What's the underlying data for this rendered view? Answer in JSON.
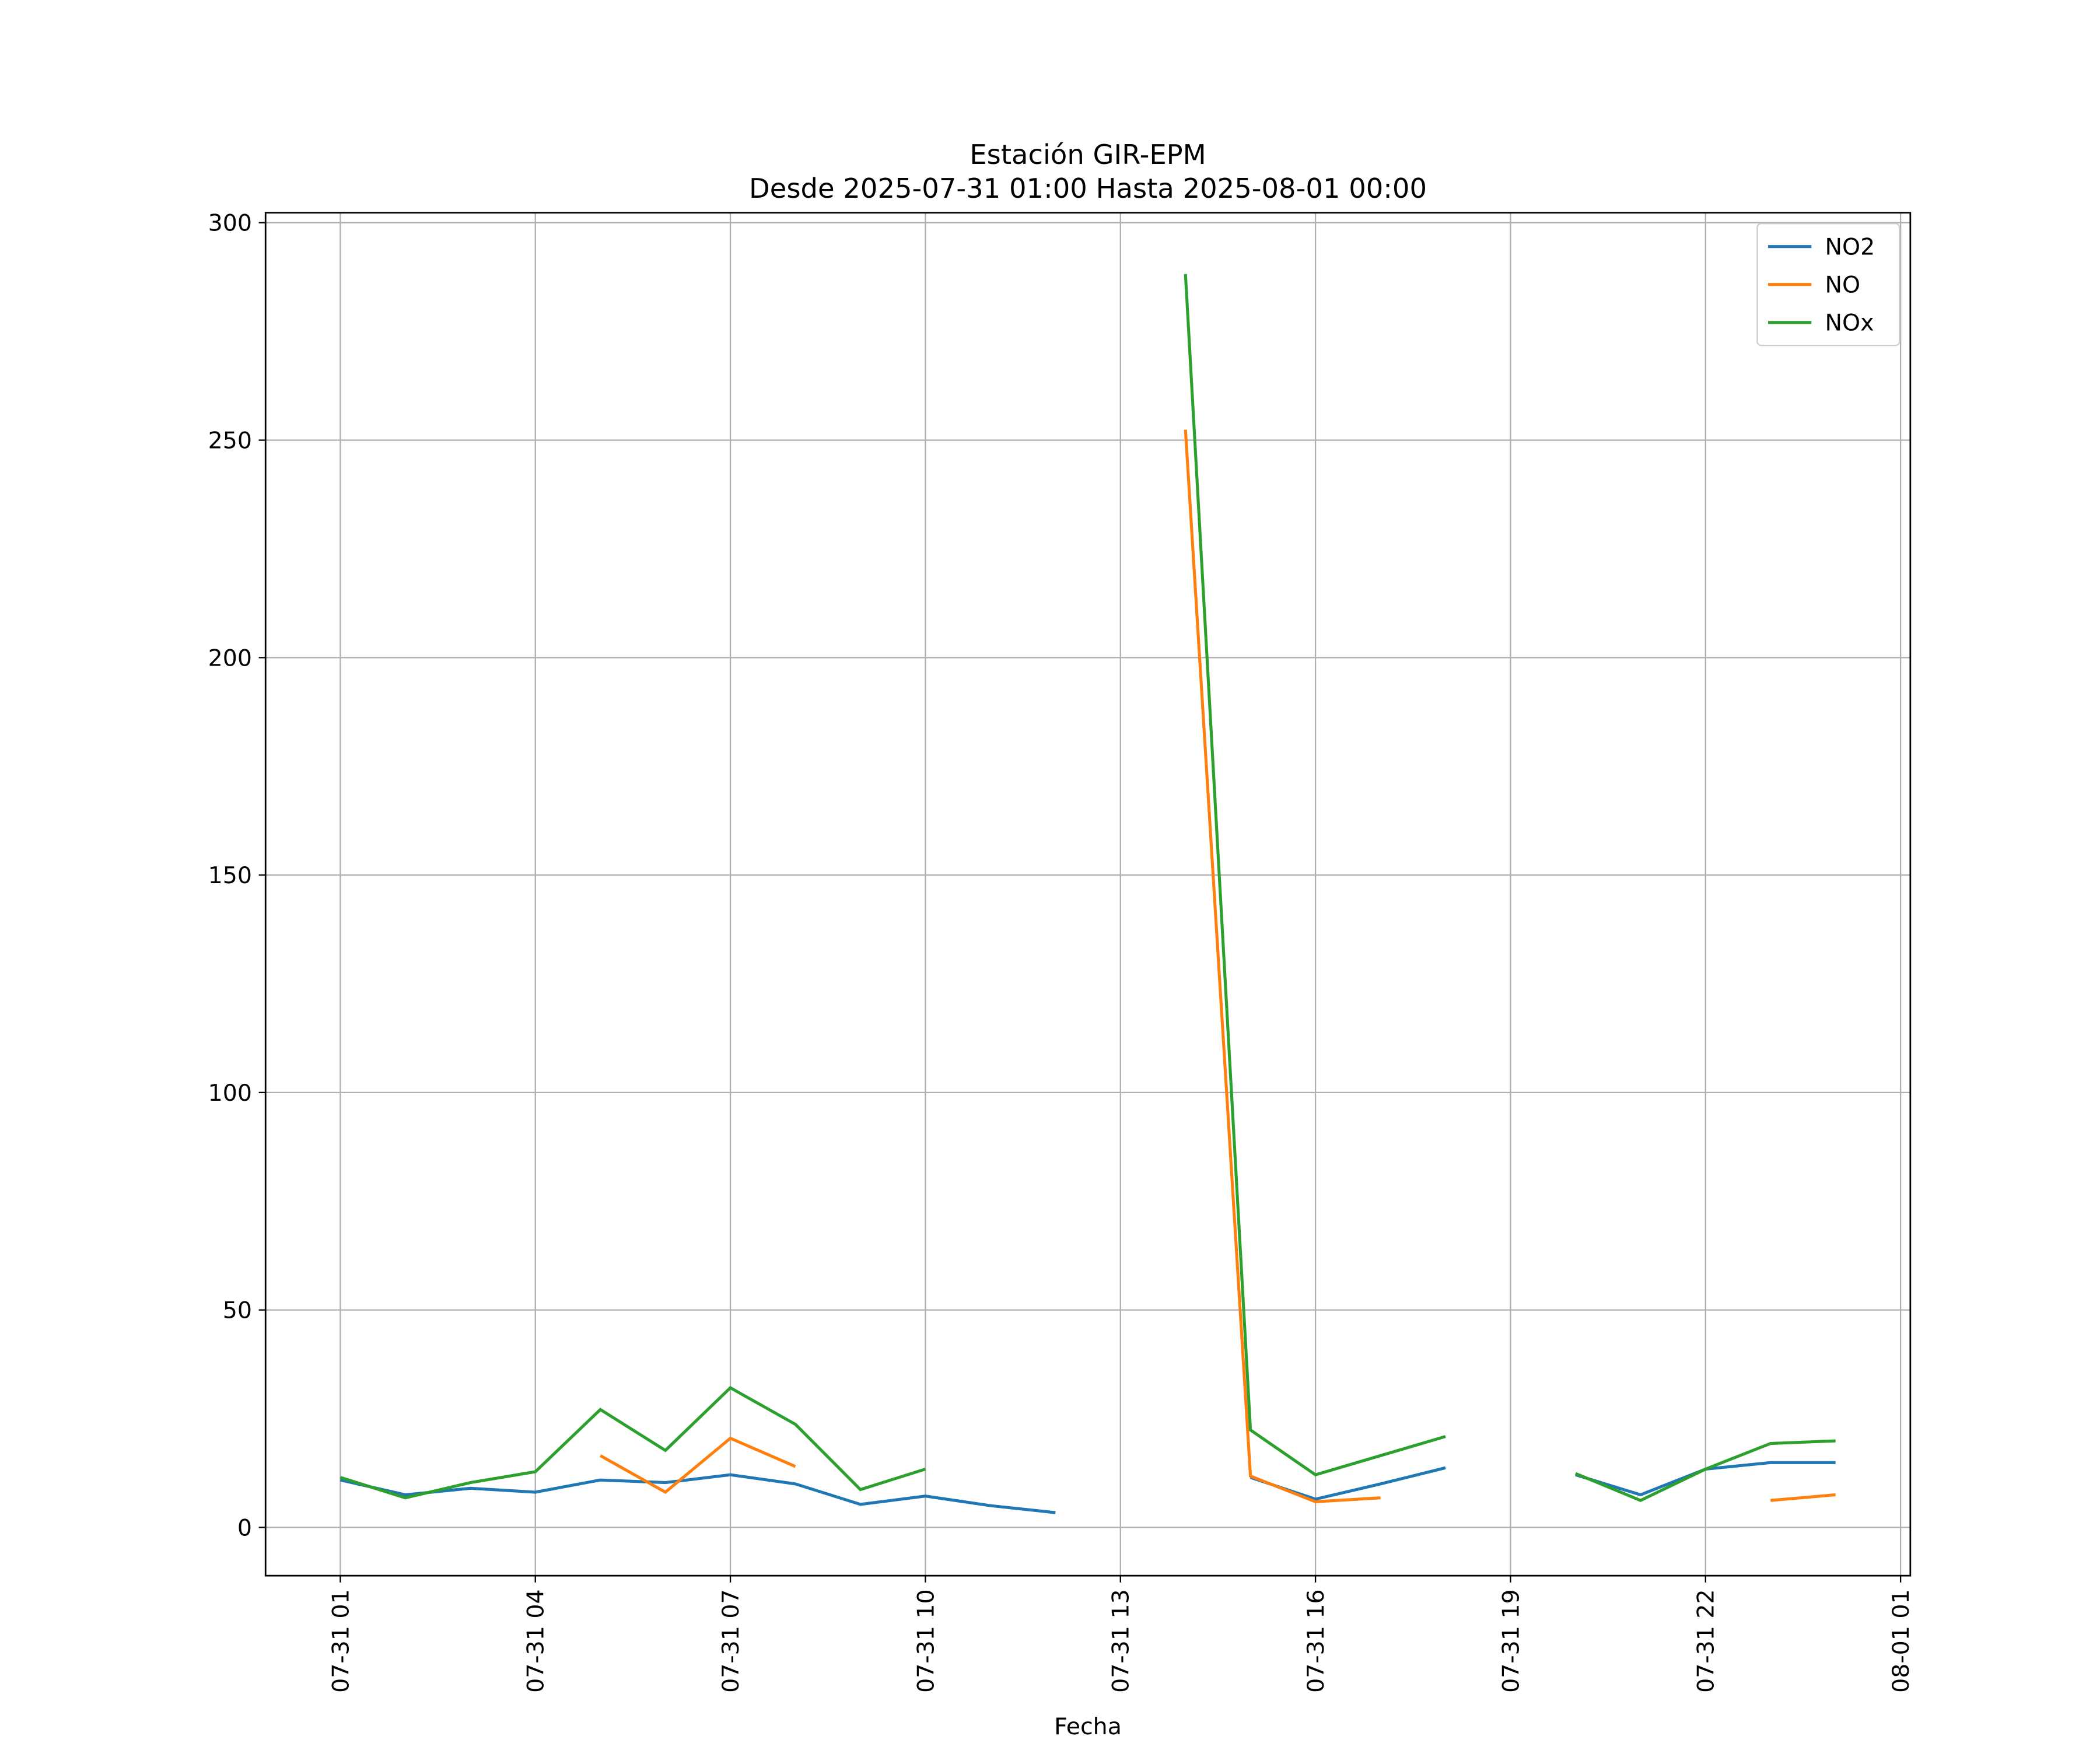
{
  "chart_data": {
    "type": "line",
    "title": "Estación GIR-EPM",
    "subtitle": "Desde 2025-07-31 01:00 Hasta 2025-08-01 00:00",
    "x_label": "Fecha",
    "x": [
      "07-31 01",
      "07-31 02",
      "07-31 03",
      "07-31 04",
      "07-31 05",
      "07-31 06",
      "07-31 07",
      "07-31 08",
      "07-31 09",
      "07-31 10",
      "07-31 11",
      "07-31 12",
      "07-31 13",
      "07-31 14",
      "07-31 15",
      "07-31 16",
      "07-31 17",
      "07-31 18",
      "07-31 19",
      "07-31 20",
      "07-31 21",
      "07-31 22",
      "07-31 23",
      "08-01 00"
    ],
    "series": [
      {
        "name": "NO2",
        "color": "#1f77b4",
        "values": [
          10.9,
          7.5,
          9.0,
          8.1,
          10.9,
          10.3,
          12.1,
          10.0,
          5.3,
          7.2,
          5.0,
          3.4,
          null,
          null,
          11.5,
          6.5,
          10.0,
          13.7,
          null,
          12.1,
          7.5,
          13.4,
          14.9,
          14.9
        ]
      },
      {
        "name": "NO",
        "color": "#ff7f0e",
        "values": [
          null,
          null,
          null,
          null,
          16.5,
          8.1,
          20.5,
          14.0,
          null,
          null,
          null,
          null,
          null,
          252.4,
          11.8,
          5.9,
          6.8,
          null,
          null,
          null,
          null,
          null,
          6.2,
          7.5
        ]
      },
      {
        "name": "NOx",
        "color": "#2ca02c",
        "values": [
          11.5,
          6.8,
          10.3,
          12.8,
          27.1,
          17.7,
          32.1,
          23.7,
          8.7,
          13.4,
          null,
          null,
          null,
          288.2,
          22.4,
          12.1,
          16.5,
          20.9,
          null,
          12.4,
          6.2,
          13.4,
          19.3,
          19.9
        ]
      }
    ],
    "xlim": [
      "07-30 23:51",
      "08-01 01:09"
    ],
    "xticks": [
      "07-31 01",
      "07-31 04",
      "07-31 07",
      "07-31 10",
      "07-31 13",
      "07-31 16",
      "07-31 19",
      "07-31 22",
      "08-01 01"
    ],
    "ylim": [
      -11.1,
      302.3
    ],
    "yticks": [
      0,
      50,
      100,
      150,
      200,
      250,
      300
    ],
    "grid": true,
    "legend": "upper right"
  }
}
